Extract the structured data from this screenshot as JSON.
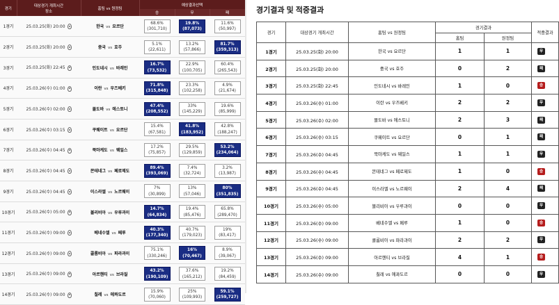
{
  "left": {
    "headers": {
      "game": "경기",
      "datetime": "대상경기 개최시간",
      "venue": "장소",
      "match": "홈팀 vs 원정팀",
      "prediction": "예상결과선택",
      "win": "승",
      "draw": "무",
      "loss": "패"
    },
    "vs": "vs",
    "rows": [
      {
        "game": "1경기",
        "date": "25.03.25(화) 20:00",
        "home": "한국",
        "away": "요르단",
        "o": [
          {
            "p": "68.6%",
            "c": "(301,710)",
            "on": false
          },
          {
            "p": "19.8%",
            "c": "(87,073)",
            "on": true
          },
          {
            "p": "11.6%",
            "c": "(50,997)",
            "on": false
          }
        ]
      },
      {
        "game": "2경기",
        "date": "25.03.25(화) 20:00",
        "home": "중국",
        "away": "호주",
        "o": [
          {
            "p": "5.1%",
            "c": "(22,611)",
            "on": false
          },
          {
            "p": "13.2%",
            "c": "(57,866)",
            "on": false
          },
          {
            "p": "81.7%",
            "c": "(359,313)",
            "on": true
          }
        ]
      },
      {
        "game": "3경기",
        "date": "25.03.25(화) 22:45",
        "home": "인도네시",
        "away": "바레인",
        "o": [
          {
            "p": "16.7%",
            "c": "(73,532)",
            "on": true
          },
          {
            "p": "22.9%",
            "c": "(100,705)",
            "on": false
          },
          {
            "p": "60.4%",
            "c": "(265,543)",
            "on": false
          }
        ]
      },
      {
        "game": "4경기",
        "date": "25.03.26(수) 01:00",
        "home": "이란",
        "away": "우즈베키",
        "o": [
          {
            "p": "71.8%",
            "c": "(315,848)",
            "on": true
          },
          {
            "p": "23.3%",
            "c": "(102,258)",
            "on": false
          },
          {
            "p": "4.9%",
            "c": "(21,674)",
            "on": false
          }
        ]
      },
      {
        "game": "5경기",
        "date": "25.03.26(수) 02:00",
        "home": "몰도바",
        "away": "에스토니",
        "o": [
          {
            "p": "47.4%",
            "c": "(208,552)",
            "on": true
          },
          {
            "p": "33%",
            "c": "(145,229)",
            "on": false
          },
          {
            "p": "19.6%",
            "c": "(85,999)",
            "on": false
          }
        ]
      },
      {
        "game": "6경기",
        "date": "25.03.26(수) 03:15",
        "home": "쿠웨이트",
        "away": "요르단",
        "o": [
          {
            "p": "15.4%",
            "c": "(67,581)",
            "on": false
          },
          {
            "p": "41.8%",
            "c": "(183,952)",
            "on": true
          },
          {
            "p": "42.8%",
            "c": "(188,247)",
            "on": false
          }
        ]
      },
      {
        "game": "7경기",
        "date": "25.03.26(수) 04:45",
        "home": "북마케도",
        "away": "웨일스",
        "o": [
          {
            "p": "17.2%",
            "c": "(75,857)",
            "on": false
          },
          {
            "p": "29.5%",
            "c": "(129,859)",
            "on": false
          },
          {
            "p": "53.2%",
            "c": "(234,064)",
            "on": true
          }
        ]
      },
      {
        "game": "8경기",
        "date": "25.03.26(수) 04:45",
        "home": "몬테네그",
        "away": "페로제도",
        "o": [
          {
            "p": "89.4%",
            "c": "(393,069)",
            "on": true
          },
          {
            "p": "7.4%",
            "c": "(32,724)",
            "on": false
          },
          {
            "p": "3.2%",
            "c": "(13,987)",
            "on": false
          }
        ]
      },
      {
        "game": "9경기",
        "date": "25.03.26(수) 04:45",
        "home": "이스라엘",
        "away": "노르웨이",
        "o": [
          {
            "p": "7%",
            "c": "(30,899)",
            "on": false
          },
          {
            "p": "13%",
            "c": "(57,046)",
            "on": false
          },
          {
            "p": "80%",
            "c": "(351,835)",
            "on": true
          }
        ]
      },
      {
        "game": "10경기",
        "date": "25.03.26(수) 05:00",
        "home": "볼리비아",
        "away": "우루과이",
        "o": [
          {
            "p": "14.7%",
            "c": "(64,834)",
            "on": true
          },
          {
            "p": "19.4%",
            "c": "(85,476)",
            "on": false
          },
          {
            "p": "65.8%",
            "c": "(289,470)",
            "on": false
          }
        ]
      },
      {
        "game": "11경기",
        "date": "25.03.26(수) 09:00",
        "home": "베네수엘",
        "away": "페루",
        "o": [
          {
            "p": "40.3%",
            "c": "(177,340)",
            "on": true
          },
          {
            "p": "40.7%",
            "c": "(179,023)",
            "on": false
          },
          {
            "p": "19%",
            "c": "(83,417)",
            "on": false
          }
        ]
      },
      {
        "game": "12경기",
        "date": "25.03.26(수) 09:00",
        "home": "콜롬비아",
        "away": "파라과이",
        "o": [
          {
            "p": "75.1%",
            "c": "(330,246)",
            "on": false
          },
          {
            "p": "16%",
            "c": "(70,467)",
            "on": true
          },
          {
            "p": "8.9%",
            "c": "(39,067)",
            "on": false
          }
        ]
      },
      {
        "game": "13경기",
        "date": "25.03.26(수) 09:00",
        "home": "아르헨티",
        "away": "브라질",
        "o": [
          {
            "p": "43.2%",
            "c": "(190,109)",
            "on": true
          },
          {
            "p": "37.6%",
            "c": "(165,212)",
            "on": false
          },
          {
            "p": "19.2%",
            "c": "(84,459)",
            "on": false
          }
        ]
      },
      {
        "game": "14경기",
        "date": "25.03.26(수) 09:00",
        "home": "칠레",
        "away": "에콰도르",
        "o": [
          {
            "p": "15.9%",
            "c": "(70,060)",
            "on": false
          },
          {
            "p": "25%",
            "c": "(109,993)",
            "on": false
          },
          {
            "p": "59.1%",
            "c": "(259,727)",
            "on": true
          }
        ]
      }
    ]
  },
  "right": {
    "title": "경기결과 및 적중결과",
    "headers": {
      "game": "경기",
      "datetime": "대상경기 개최시간",
      "match": "홈팀 vs 원정팀",
      "result": "경기결과",
      "home": "홈팀",
      "away": "원정팀",
      "hit": "적중결과"
    },
    "rows": [
      {
        "game": "1경기",
        "date": "25.03.25(화) 20:00",
        "match": "한국 vs 요르단",
        "h": "1",
        "a": "1",
        "badge": "무",
        "color": "dark"
      },
      {
        "game": "2경기",
        "date": "25.03.25(화) 20:00",
        "match": "중국 vs 호주",
        "h": "0",
        "a": "2",
        "badge": "패",
        "color": "dark"
      },
      {
        "game": "3경기",
        "date": "25.03.25(화) 22:45",
        "match": "인도네시 vs 바레인",
        "h": "1",
        "a": "0",
        "badge": "승",
        "color": "red"
      },
      {
        "game": "4경기",
        "date": "25.03.26(수) 01:00",
        "match": "이란 vs 우즈베키",
        "h": "2",
        "a": "2",
        "badge": "무",
        "color": "dark"
      },
      {
        "game": "5경기",
        "date": "25.03.26(수) 02:00",
        "match": "몰도바 vs 에스토니",
        "h": "2",
        "a": "3",
        "badge": "패",
        "color": "dark"
      },
      {
        "game": "6경기",
        "date": "25.03.26(수) 03:15",
        "match": "쿠웨이트 vs 요르단",
        "h": "0",
        "a": "1",
        "badge": "패",
        "color": "dark"
      },
      {
        "game": "7경기",
        "date": "25.03.26(수) 04:45",
        "match": "북마케도 vs 웨일스",
        "h": "1",
        "a": "1",
        "badge": "무",
        "color": "dark"
      },
      {
        "game": "8경기",
        "date": "25.03.26(수) 04:45",
        "match": "몬테네그 vs 페로제도",
        "h": "1",
        "a": "0",
        "badge": "승",
        "color": "red"
      },
      {
        "game": "9경기",
        "date": "25.03.26(수) 04:45",
        "match": "이스라엘 vs 노르웨이",
        "h": "2",
        "a": "4",
        "badge": "패",
        "color": "dark"
      },
      {
        "game": "10경기",
        "date": "25.03.26(수) 05:00",
        "match": "볼리비아 vs 우루과이",
        "h": "0",
        "a": "0",
        "badge": "무",
        "color": "dark"
      },
      {
        "game": "11경기",
        "date": "25.03.26(수) 09:00",
        "match": "베네수엘 vs 페루",
        "h": "1",
        "a": "0",
        "badge": "승",
        "color": "red"
      },
      {
        "game": "12경기",
        "date": "25.03.26(수) 09:00",
        "match": "콜롬비아 vs 파라과이",
        "h": "2",
        "a": "2",
        "badge": "무",
        "color": "dark"
      },
      {
        "game": "13경기",
        "date": "25.03.26(수) 09:00",
        "match": "아르헨티 vs 브라질",
        "h": "4",
        "a": "1",
        "badge": "승",
        "color": "red"
      },
      {
        "game": "14경기",
        "date": "25.03.26(수) 09:00",
        "match": "칠레 vs 에콰도르",
        "h": "0",
        "a": "0",
        "badge": "무",
        "color": "dark"
      }
    ]
  }
}
